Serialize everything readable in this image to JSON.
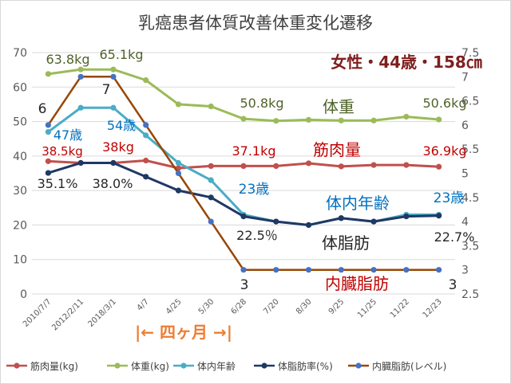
{
  "chart_data": {
    "type": "line",
    "title": "乳癌患者体質改善体重変化遷移",
    "subtitle": "女性・44歳・158㎝",
    "x": [
      "2010/7/7",
      "2012/2/11",
      "2018/3/1",
      "4/7",
      "4/25",
      "5/30",
      "6/28",
      "7/20",
      "8/30",
      "9/25",
      "11/25",
      "11/22",
      "12/23"
    ],
    "y_left": {
      "lim": [
        0,
        70
      ],
      "ticks": [
        0,
        10,
        20,
        30,
        40,
        50,
        60,
        70
      ]
    },
    "y_right": {
      "lim": [
        2.5,
        7.5
      ],
      "ticks": [
        "2.5",
        "3",
        "3.5",
        "4",
        "4.5",
        "5",
        "5.5",
        "6",
        "6.5",
        "7",
        "7.5"
      ]
    },
    "period_label": "|← 四ヶ月 →|",
    "series": [
      {
        "key": "muscle",
        "name": "筋肉量(kg)",
        "axis": "left",
        "color": "#C0504D",
        "values": [
          38.5,
          38,
          38,
          38.7,
          36.5,
          37.1,
          37.1,
          37.1,
          37.9,
          37,
          37.4,
          37.4,
          36.9
        ]
      },
      {
        "key": "weight",
        "name": "体重(kg)",
        "axis": "left",
        "color": "#9BBB59",
        "values": [
          63.8,
          65.1,
          65.1,
          62,
          55,
          54.4,
          50.8,
          50.2,
          50.5,
          50.3,
          50.3,
          51.4,
          50.6
        ]
      },
      {
        "key": "bodyage",
        "name": "体内年齢",
        "axis": "left",
        "color": "#4BACC6",
        "values": [
          47,
          54,
          54,
          46,
          38,
          33,
          23,
          21,
          20,
          22,
          21,
          23,
          23
        ]
      },
      {
        "key": "fatrate",
        "name": "体脂肪率(%)",
        "axis": "left",
        "color": "#1F3864",
        "values": [
          35.1,
          38,
          38,
          34,
          30,
          28,
          22.5,
          21,
          20,
          22,
          21,
          22.5,
          22.7
        ]
      },
      {
        "key": "visceral",
        "name": "内臓脂肪(レベル)",
        "axis": "right",
        "color": "#974706",
        "values": [
          6,
          7,
          7,
          6,
          5,
          4,
          3,
          3,
          3,
          3,
          3,
          3,
          3
        ]
      }
    ],
    "annotations": {
      "series_labels": [
        {
          "text": "体重",
          "color": "#4F6228"
        },
        {
          "text": "筋肉量",
          "color": "#C00000"
        },
        {
          "text": "体内年齢",
          "color": "#0070C0"
        },
        {
          "text": "体脂肪",
          "color": "#262626"
        },
        {
          "text": "内臓脂肪",
          "color": "#C00000"
        }
      ],
      "data_labels": [
        {
          "text": "63.8kg",
          "color": "#4F6228"
        },
        {
          "text": "65.1kg",
          "color": "#4F6228"
        },
        {
          "text": "50.8kg",
          "color": "#4F6228"
        },
        {
          "text": "50.6kg",
          "color": "#4F6228"
        },
        {
          "text": "6",
          "color": "#262626"
        },
        {
          "text": "7",
          "color": "#262626"
        },
        {
          "text": "47歳",
          "color": "#0070C0"
        },
        {
          "text": "54歳",
          "color": "#0070C0"
        },
        {
          "text": "38.5kg",
          "color": "#C00000"
        },
        {
          "text": "38kg",
          "color": "#C00000"
        },
        {
          "text": "37.1kg",
          "color": "#C00000"
        },
        {
          "text": "36.9kg",
          "color": "#C00000"
        },
        {
          "text": "35.1%",
          "color": "#262626"
        },
        {
          "text": "38.0%",
          "color": "#262626"
        },
        {
          "text": "23歳",
          "color": "#0070C0"
        },
        {
          "text": "23歳",
          "color": "#0070C0"
        },
        {
          "text": "22.5％",
          "color": "#262626"
        },
        {
          "text": "22.7%",
          "color": "#262626"
        },
        {
          "text": "3",
          "color": "#262626"
        },
        {
          "text": "3",
          "color": "#262626"
        }
      ]
    },
    "grid": true,
    "legend": "bottom"
  }
}
